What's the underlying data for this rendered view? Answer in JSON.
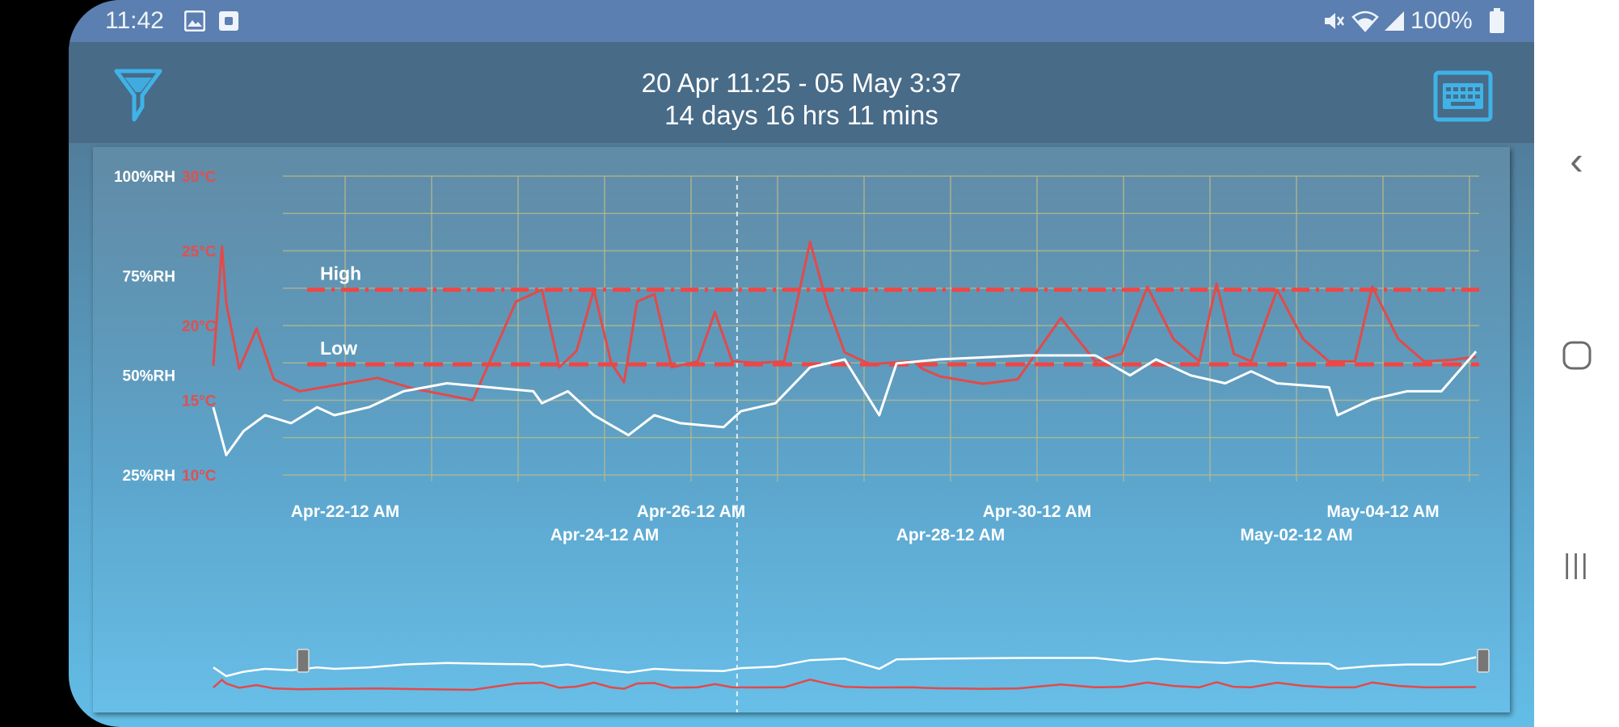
{
  "status_bar": {
    "time": "11:42",
    "battery": "100%",
    "icons": [
      "image-icon",
      "square-icon",
      "mute-icon",
      "wifi-icon",
      "signal-icon",
      "battery-icon"
    ]
  },
  "header": {
    "range": "20 Apr 11:25 - 05 May 3:37",
    "duration": "14 days 16 hrs 11 mins",
    "left_icon": "filter-icon",
    "right_icon": "keyboard-icon"
  },
  "colors": {
    "temperature": "#e24a4a",
    "humidity": "#ffffff",
    "threshold": "#f04545",
    "grid": "#b9b98a"
  },
  "chart_data": {
    "type": "line",
    "x_start": "Apr-20 11:25",
    "x_end": "May-05 03:37",
    "x_ticks": [
      "Apr-22-12 AM",
      "Apr-24-12 AM",
      "Apr-26-12 AM",
      "Apr-28-12 AM",
      "Apr-30-12 AM",
      "May-02-12 AM",
      "May-04-12 AM"
    ],
    "y_left_ticks": [
      "100%RH",
      "75%RH",
      "50%RH",
      "25%RH"
    ],
    "y_left_range": [
      25,
      100
    ],
    "y_right_ticks": [
      "30°C",
      "25°C",
      "20°C",
      "15°C",
      "10°C"
    ],
    "y_right_range": [
      10,
      30
    ],
    "thresholds": [
      {
        "name": "High",
        "value_c": 22.4
      },
      {
        "name": "Low",
        "value_c": 17.4
      }
    ],
    "cursor_x": "Apr-26 12:45",
    "grid": true,
    "series": [
      {
        "name": "Temperature",
        "x_days": [
          0,
          0.1,
          0.15,
          0.3,
          0.5,
          0.7,
          1.0,
          1.4,
          1.9,
          2.3,
          3.0,
          3.5,
          3.8,
          4.0,
          4.2,
          4.4,
          4.6,
          4.75,
          4.9,
          5.1,
          5.3,
          5.6,
          5.8,
          6.0,
          6.3,
          6.6,
          6.9,
          7.1,
          7.3,
          7.6,
          7.8,
          8.1,
          8.2,
          8.4,
          8.6,
          8.9,
          9.3,
          9.8,
          10.2,
          10.5,
          10.8,
          11.1,
          11.4,
          11.6,
          11.8,
          12.0,
          12.3,
          12.6,
          12.9,
          13.2,
          13.4,
          13.7,
          14.0,
          14.3,
          14.6
        ],
        "values_c": [
          17.3,
          25.3,
          21.5,
          17.1,
          19.8,
          16.4,
          15.6,
          16.0,
          16.5,
          15.8,
          15.0,
          21.6,
          22.4,
          17.2,
          18.3,
          22.4,
          17.5,
          16.2,
          21.6,
          22.1,
          17.2,
          17.6,
          20.9,
          17.6,
          17.5,
          17.6,
          25.6,
          21.4,
          18.2,
          17.4,
          17.5,
          17.6,
          17.1,
          16.6,
          16.4,
          16.1,
          16.4,
          20.5,
          17.6,
          18.1,
          22.6,
          19.1,
          17.6,
          22.8,
          18.1,
          17.6,
          22.4,
          19.1,
          17.6,
          17.6,
          22.6,
          19.1,
          17.6,
          17.7,
          17.9
        ]
      },
      {
        "name": "Humidity",
        "x_days": [
          0,
          0.15,
          0.35,
          0.6,
          0.9,
          1.2,
          1.4,
          1.8,
          2.2,
          2.7,
          3.2,
          3.7,
          3.8,
          4.1,
          4.4,
          4.8,
          5.1,
          5.4,
          5.9,
          6.1,
          6.5,
          6.9,
          7.3,
          7.5,
          7.7,
          7.9,
          8.4,
          9.4,
          10.2,
          10.6,
          10.9,
          11.3,
          11.7,
          12.0,
          12.3,
          12.9,
          13.0,
          13.4,
          13.8,
          14.2,
          14.6
        ],
        "values_rh": [
          42,
          30,
          36,
          40,
          38,
          42,
          40,
          42,
          46,
          48,
          47,
          46,
          43,
          46,
          40,
          35,
          40,
          38,
          37,
          41,
          43,
          52,
          54,
          47,
          40,
          53,
          54,
          55,
          55,
          50,
          54,
          50,
          48,
          51,
          48,
          47,
          40,
          44,
          46,
          46,
          56
        ]
      }
    ]
  },
  "overview": {
    "left_handle": "range-handle-left",
    "right_handle": "range-handle-right"
  },
  "nav": {
    "back": "‹",
    "home": "○",
    "recents": "|||"
  }
}
